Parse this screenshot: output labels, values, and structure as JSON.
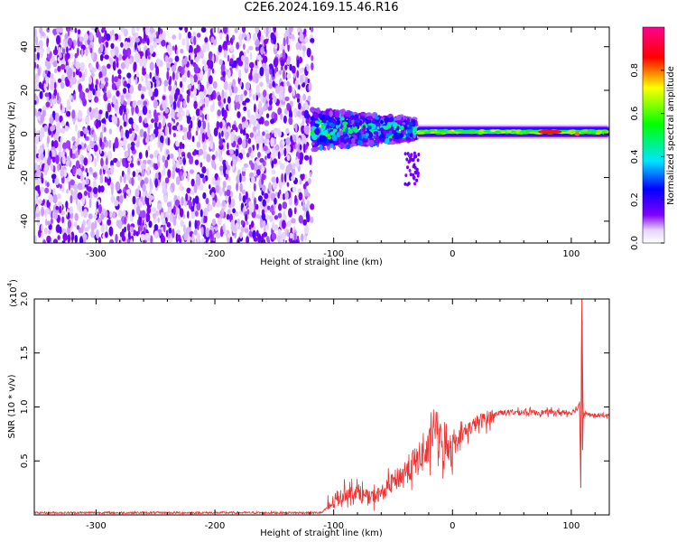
{
  "title": "C2E6.2024.169.15.46.R16",
  "chart_data": [
    {
      "type": "heatmap",
      "xlabel": "Height of straight line (km)",
      "ylabel": "Frequency (Hz)",
      "xlim": [
        -352,
        132
      ],
      "ylim": [
        -50,
        49
      ],
      "xticks": [
        -300,
        -200,
        -100,
        0,
        100
      ],
      "yticks": [
        -40,
        -20,
        0,
        20,
        40
      ],
      "colorbar": {
        "label": "Normalized spectral amplitude",
        "range": [
          0,
          1
        ],
        "ticks": [
          0.0,
          0.2,
          0.4,
          0.6,
          0.8
        ],
        "tick_labels": [
          "0.0",
          "0.2",
          "0.4",
          "0.6",
          "0.8"
        ],
        "colors": [
          "#ffffff",
          "#7b00ff",
          "#0000ff",
          "#00e5ff",
          "#00ff00",
          "#ffff00",
          "#ff0000",
          "#ff00aa"
        ]
      },
      "regions": [
        {
          "x_range": [
            -352,
            -118
          ],
          "freq_range": [
            -50,
            49
          ],
          "amplitude": 0.08,
          "kind": "noise"
        },
        {
          "x_range": [
            -118,
            -30
          ],
          "freq_center": 2,
          "freq_halfwidth": 8,
          "amplitude": 0.4,
          "kind": "signal-onset"
        },
        {
          "x_range": [
            -30,
            132
          ],
          "freq_center": 1,
          "freq_halfwidth": 3,
          "amplitude": 0.5,
          "kind": "signal-band"
        },
        {
          "x_range": [
            72,
            92
          ],
          "freq_center": 1,
          "freq_halfwidth": 1.5,
          "amplitude": 0.85,
          "kind": "peak"
        }
      ]
    },
    {
      "type": "line",
      "xlabel": "Height of straight line (km)",
      "ylabel": "SNR (10 * v/v)",
      "y_multiplier": "(x10",
      "y_multiplier_exp": "4",
      "y_multiplier_close": ")",
      "xlim": [
        -352,
        132
      ],
      "ylim": [
        0,
        2.0
      ],
      "xticks": [
        -300,
        -200,
        -100,
        0,
        100
      ],
      "yticks": [
        0.5,
        1.0,
        1.5,
        2.0
      ],
      "ytick_labels": [
        "0.5",
        "1.0",
        "1.5",
        "2.0"
      ],
      "color": "#ee3333",
      "series": [
        {
          "x": [
            -352,
            -300,
            -250,
            -200,
            -150,
            -110,
            -100,
            -90,
            -80,
            -70,
            -60,
            -50,
            -40,
            -30,
            -20,
            -15,
            -12,
            -8,
            0,
            20,
            40,
            60,
            80,
            100,
            105,
            107,
            108,
            109,
            110,
            112,
            115,
            120,
            132
          ],
          "y": [
            0.02,
            0.02,
            0.02,
            0.02,
            0.02,
            0.02,
            0.12,
            0.2,
            0.22,
            0.15,
            0.2,
            0.3,
            0.4,
            0.5,
            0.6,
            0.85,
            0.75,
            0.6,
            0.68,
            0.85,
            0.95,
            0.95,
            0.95,
            0.95,
            0.98,
            1.05,
            0.3,
            2.0,
            0.9,
            0.95,
            0.92,
            0.92,
            0.92
          ]
        }
      ]
    }
  ]
}
